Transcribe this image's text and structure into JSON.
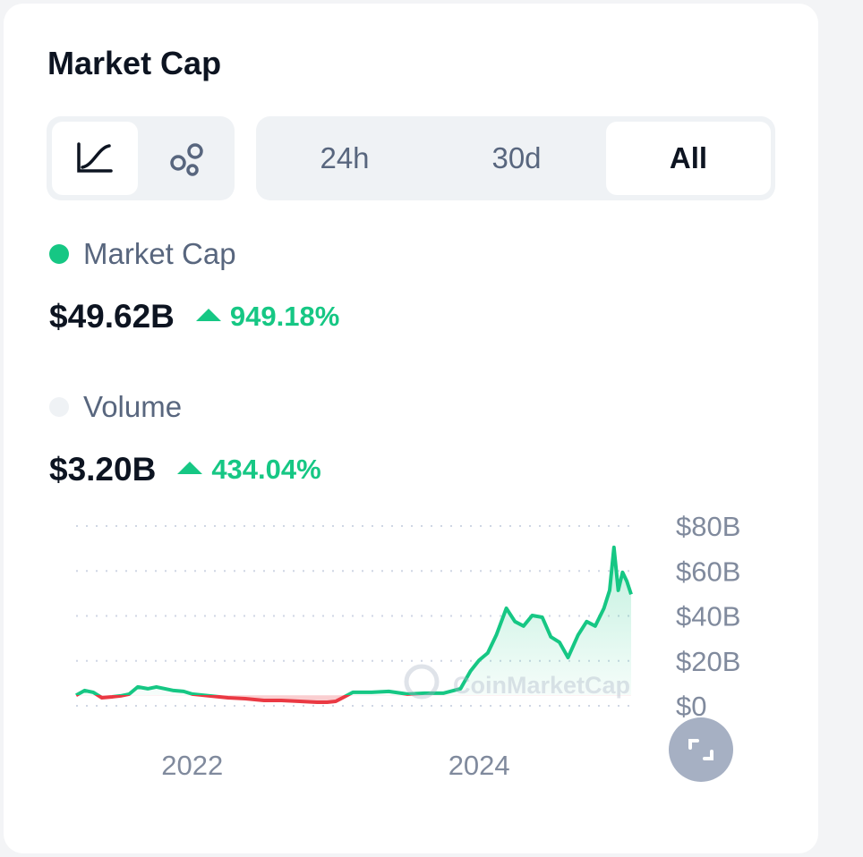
{
  "header": {
    "title": "Market Cap"
  },
  "tabs": [
    "24h",
    "30d",
    "All"
  ],
  "selected_tab": 2,
  "stats": [
    {
      "label": "Market Cap",
      "value": "$49.62B",
      "change": "949.18%",
      "dot_color": "#16c784",
      "change_color": "#16c784"
    },
    {
      "label": "Volume",
      "value": "$3.20B",
      "change": "434.04%",
      "dot_color": "#eff2f5",
      "change_color": "#16c784"
    }
  ],
  "watermark": "CoinMarketCap",
  "chart_data": {
    "type": "line",
    "x": [
      2021.19,
      2021.25,
      2021.31,
      2021.37,
      2021.44,
      2021.5,
      2021.56,
      2021.62,
      2021.69,
      2021.75,
      2021.81,
      2021.87,
      2021.94,
      2022.0,
      2022.12,
      2022.25,
      2022.37,
      2022.5,
      2022.62,
      2022.75,
      2022.87,
      2022.94,
      2023.0,
      2023.06,
      2023.12,
      2023.25,
      2023.37,
      2023.5,
      2023.62,
      2023.75,
      2023.87,
      2023.94,
      2024.0,
      2024.06,
      2024.12,
      2024.19,
      2024.25,
      2024.31,
      2024.37,
      2024.44,
      2024.5,
      2024.56,
      2024.62,
      2024.69,
      2024.75,
      2024.81,
      2024.87,
      2024.91,
      2024.94,
      2024.97,
      2025.0,
      2025.03,
      2025.06
    ],
    "values": [
      4.7,
      6.8,
      6,
      3.6,
      4,
      4.4,
      5.2,
      8.4,
      7.6,
      8.4,
      7.6,
      6.8,
      6.4,
      5.2,
      4.4,
      3.6,
      3.2,
      2.4,
      2.4,
      2,
      1.6,
      1.6,
      2,
      4,
      6,
      6,
      6.4,
      5.2,
      5.6,
      5.6,
      7.6,
      15.5,
      20.3,
      23.5,
      31.5,
      43.4,
      37.5,
      35.5,
      40.2,
      39.4,
      30.7,
      28.3,
      21.5,
      31.5,
      37.5,
      35.5,
      43.4,
      51.4,
      70.5,
      51.4,
      59.4,
      55.4,
      49.6
    ],
    "xlim": [
      2021.19,
      2025.06
    ],
    "xticks": [
      2022,
      2024
    ],
    "ylim": [
      0,
      80
    ],
    "yticks": [
      {
        "value": 0,
        "label": "$0"
      },
      {
        "value": 20,
        "label": "$20B"
      },
      {
        "value": 40,
        "label": "$40B"
      },
      {
        "value": 60,
        "label": "$60B"
      },
      {
        "value": 80,
        "label": "$80B"
      }
    ],
    "grid": true,
    "up_color": "#16c784",
    "down_color": "#ea3943"
  }
}
